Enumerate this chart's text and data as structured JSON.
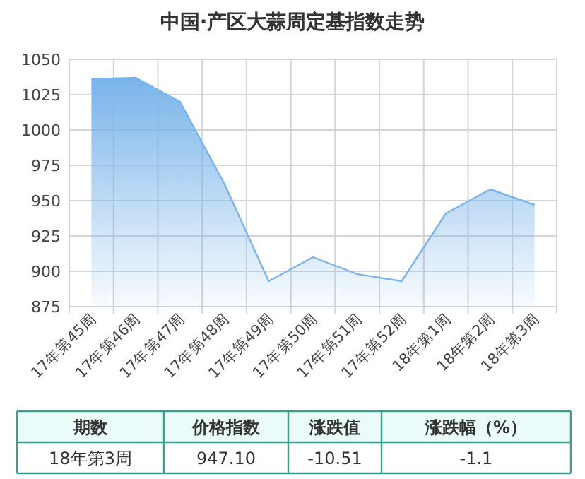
{
  "chart_data": {
    "type": "area",
    "title": "中国·产区大蒜周定基指数走势",
    "categories": [
      "17年第45周",
      "17年第46周",
      "17年第47周",
      "17年第48周",
      "17年第49周",
      "17年第50周",
      "17年第51周",
      "17年第52周",
      "18年第1周",
      "18年第2周",
      "18年第3周"
    ],
    "values": [
      1036,
      1037,
      1020,
      962,
      893,
      910,
      898,
      893,
      941,
      958,
      947
    ],
    "color": "#7ab4ea",
    "ylim": [
      875,
      1050
    ],
    "yticks": [
      875,
      900,
      925,
      950,
      975,
      1000,
      1025,
      1050
    ],
    "grid": true,
    "annotations": [
      "期数",
      "价格指数",
      "涨跌值",
      "涨跌幅（%）",
      "18年第3周",
      "947.10",
      "-10.51",
      "-1.1"
    ]
  }
}
